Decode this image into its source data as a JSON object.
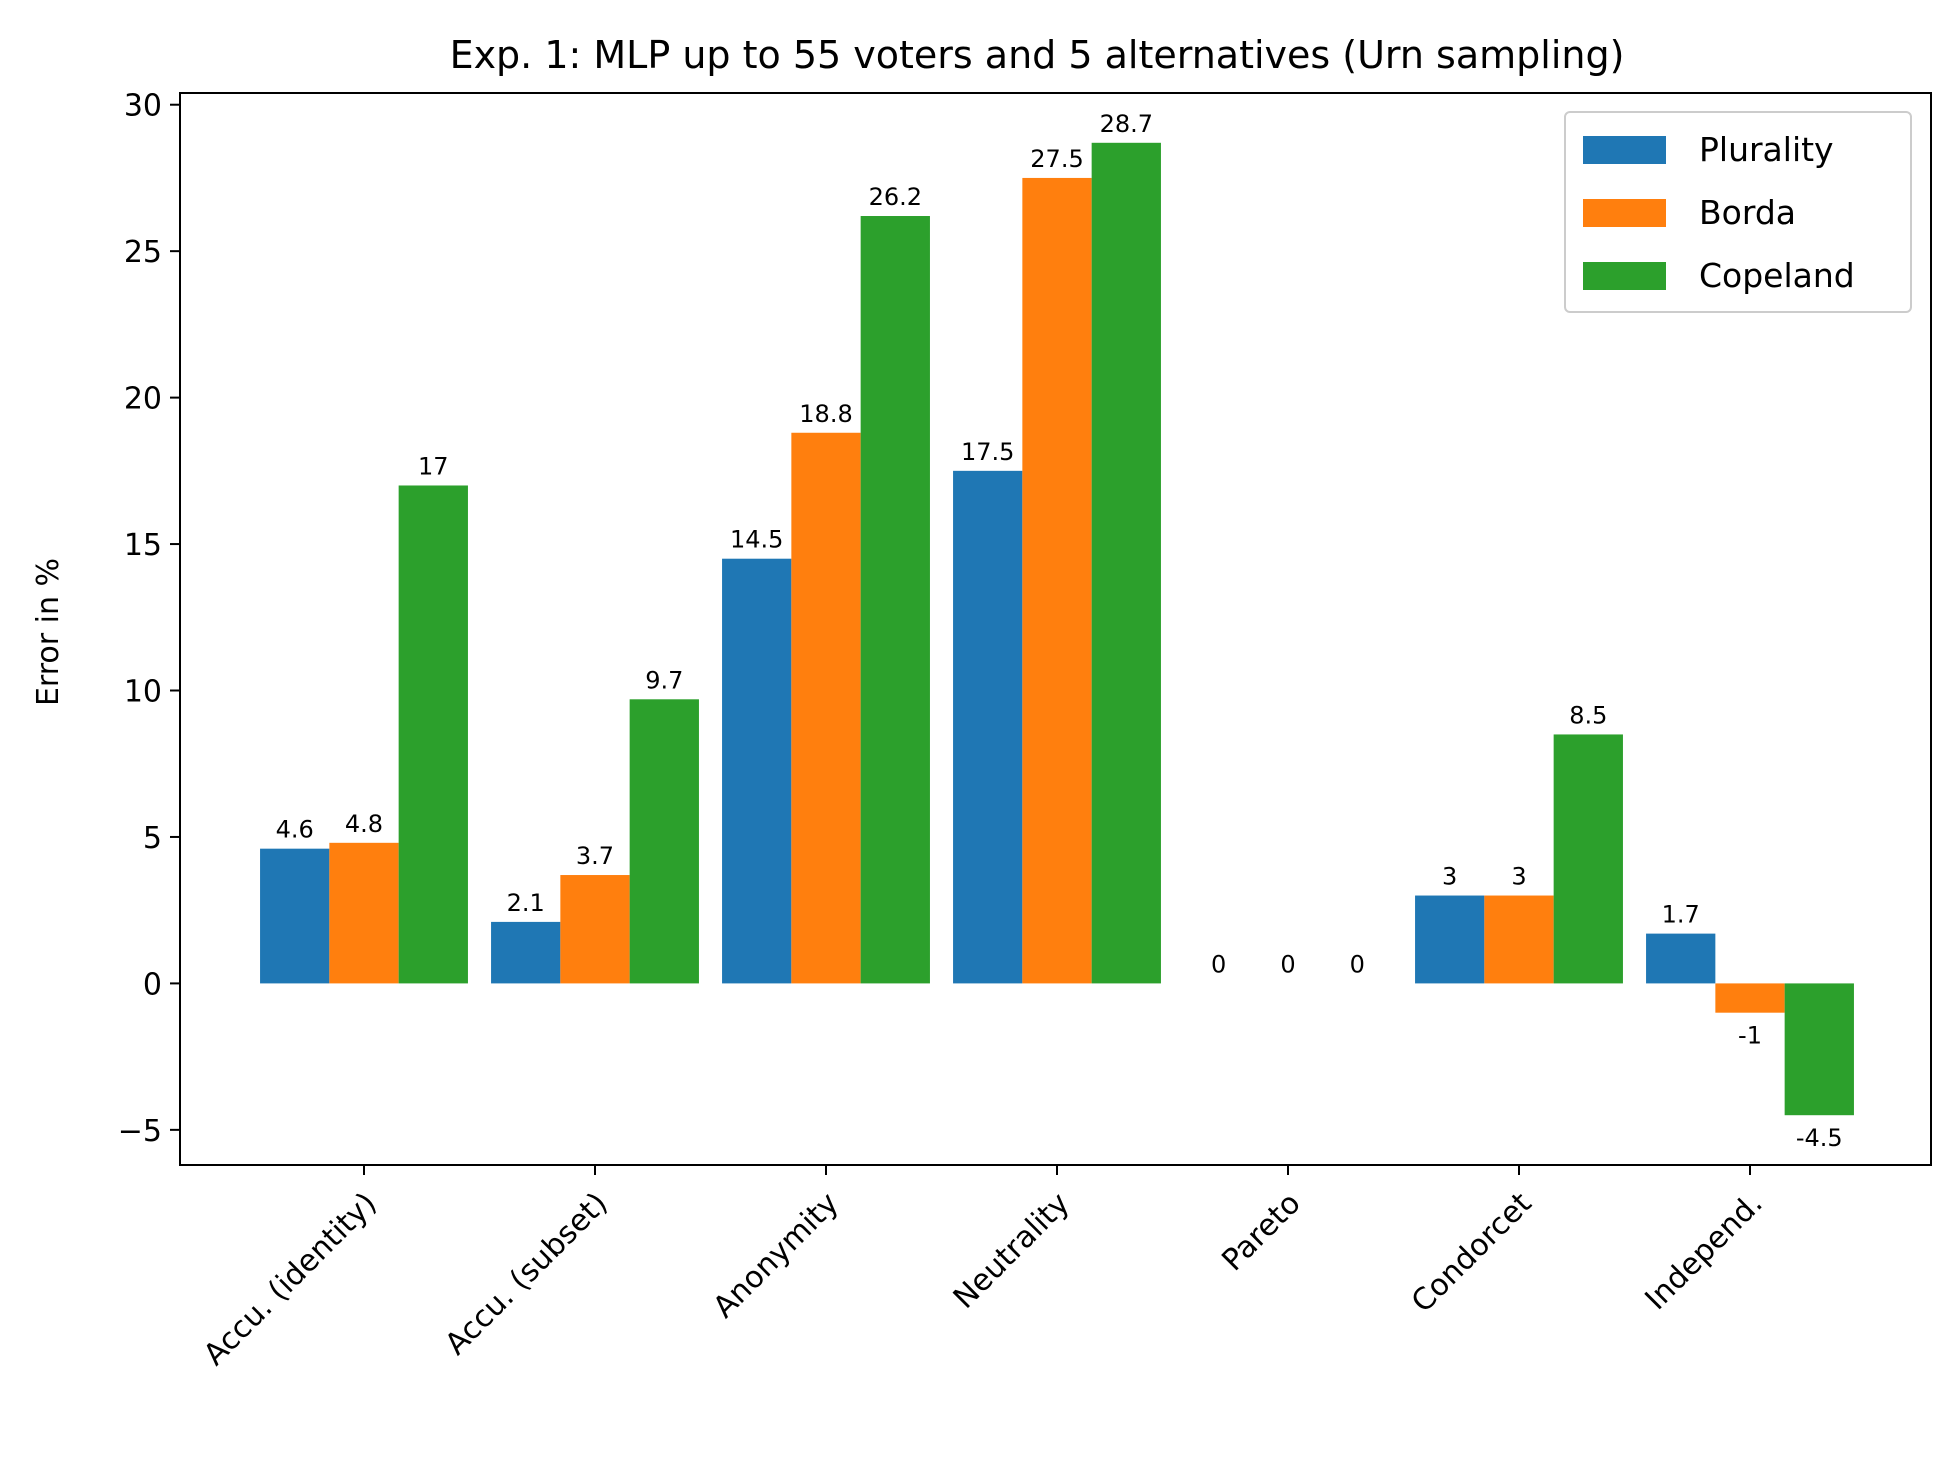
{
  "chart_data": {
    "type": "bar",
    "title": "Exp. 1: MLP up to 55 voters and 5 alternatives (Urn sampling)",
    "xlabel": "",
    "ylabel": "Error in %",
    "ylim": [
      -6.2,
      30.4
    ],
    "yticks": [
      -5,
      0,
      5,
      10,
      15,
      20,
      25,
      30
    ],
    "ytick_labels": [
      "−5",
      "0",
      "5",
      "10",
      "15",
      "20",
      "25",
      "30"
    ],
    "categories": [
      "Accu. (identity)",
      "Accu. (subset)",
      "Anonymity",
      "Neutrality",
      "Pareto",
      "Condorcet",
      "Independ."
    ],
    "series": [
      {
        "name": "Plurality",
        "color": "#1f77b4",
        "values": [
          4.6,
          2.1,
          14.5,
          17.5,
          0,
          3,
          1.7
        ]
      },
      {
        "name": "Borda",
        "color": "#ff7f0e",
        "values": [
          4.8,
          3.7,
          18.8,
          27.5,
          0,
          3,
          -1
        ]
      },
      {
        "name": "Copeland",
        "color": "#2ca02c",
        "values": [
          17,
          9.7,
          26.2,
          28.7,
          0,
          8.5,
          -4.5
        ]
      }
    ],
    "grid": false,
    "legend_position": "top-right"
  }
}
